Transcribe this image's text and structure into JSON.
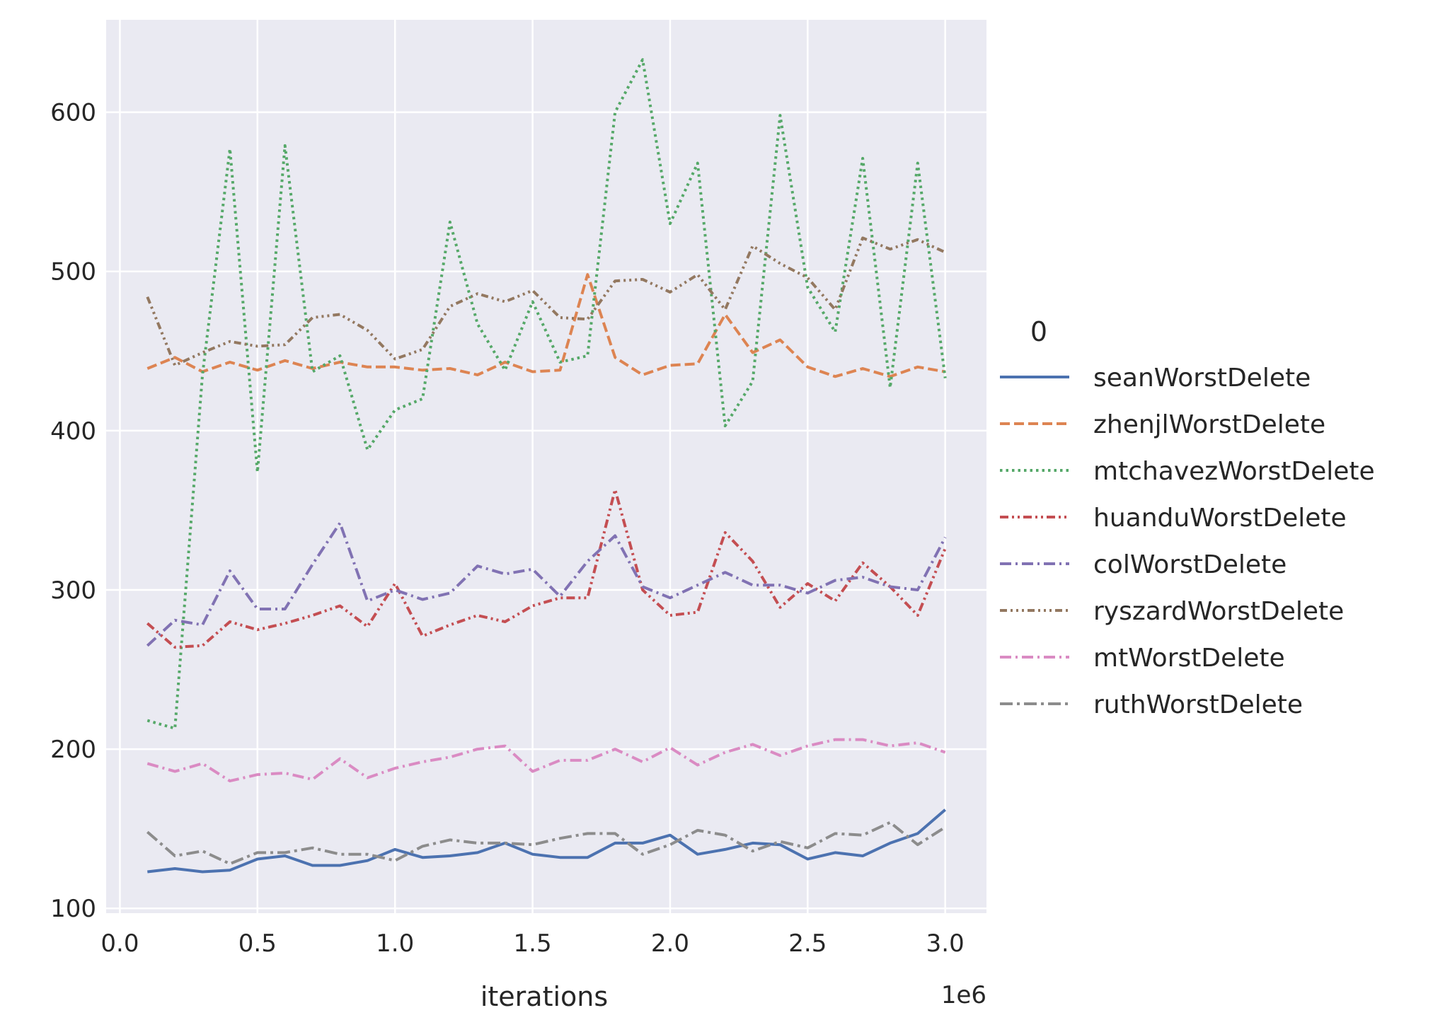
{
  "chart_data": {
    "type": "line",
    "xlabel": "iterations",
    "x_offset_text": "1e6",
    "xlim": [
      -0.05,
      3.15
    ],
    "ylim": [
      97,
      658
    ],
    "x_ticks": [
      0.0,
      0.5,
      1.0,
      1.5,
      2.0,
      2.5,
      3.0
    ],
    "x_tick_labels": [
      "0.0",
      "0.5",
      "1.0",
      "1.5",
      "2.0",
      "2.5",
      "3.0"
    ],
    "y_ticks": [
      100,
      200,
      300,
      400,
      500,
      600
    ],
    "y_tick_labels": [
      "100",
      "200",
      "300",
      "400",
      "500",
      "600"
    ],
    "grid": true,
    "legend_title": "0",
    "legend_placement": "right",
    "x": [
      0.1,
      0.2,
      0.3,
      0.4,
      0.5,
      0.6,
      0.7,
      0.8,
      0.9,
      1.0,
      1.1,
      1.2,
      1.3,
      1.4,
      1.5,
      1.6,
      1.7,
      1.8,
      1.9,
      2.0,
      2.1,
      2.2,
      2.3,
      2.4,
      2.5,
      2.6,
      2.7,
      2.8,
      2.9,
      3.0
    ],
    "series": [
      {
        "name": "seanWorstDelete",
        "color": "#4c72b0",
        "dash": "solid",
        "values": [
          123,
          125,
          123,
          124,
          131,
          133,
          127,
          127,
          130,
          137,
          132,
          133,
          135,
          141,
          134,
          132,
          132,
          141,
          141,
          146,
          134,
          137,
          141,
          140,
          131,
          135,
          133,
          141,
          147,
          162
        ]
      },
      {
        "name": "zhenjlWorstDelete",
        "color": "#dd8452",
        "dash": "dashed",
        "values": [
          439,
          446,
          437,
          443,
          438,
          444,
          439,
          443,
          440,
          440,
          438,
          439,
          435,
          443,
          437,
          438,
          498,
          446,
          435,
          441,
          442,
          473,
          449,
          457,
          440,
          434,
          439,
          434,
          440,
          437
        ]
      },
      {
        "name": "mtchavezWorstDelete",
        "color": "#55a868",
        "dash": "dotted",
        "values": [
          218,
          213,
          435,
          577,
          374,
          579,
          437,
          447,
          388,
          413,
          420,
          531,
          467,
          438,
          481,
          443,
          447,
          600,
          633,
          530,
          568,
          403,
          431,
          598,
          490,
          462,
          571,
          427,
          568,
          433
        ]
      },
      {
        "name": "huanduWorstDelete",
        "color": "#c44e52",
        "dash": "dashdotdot",
        "values": [
          279,
          264,
          265,
          280,
          275,
          279,
          284,
          290,
          277,
          304,
          271,
          278,
          284,
          280,
          290,
          295,
          295,
          363,
          300,
          284,
          286,
          336,
          318,
          289,
          304,
          293,
          317,
          302,
          284,
          326
        ]
      },
      {
        "name": "colWorstDelete",
        "color": "#8172b3",
        "dash": "dashdot",
        "values": [
          265,
          281,
          278,
          312,
          288,
          288,
          316,
          342,
          293,
          300,
          294,
          298,
          315,
          310,
          313,
          296,
          318,
          334,
          302,
          295,
          303,
          311,
          303,
          303,
          298,
          306,
          308,
          302,
          300,
          333
        ]
      },
      {
        "name": "ryszardWorstDelete",
        "color": "#937860",
        "dash": "dashdotdotdot",
        "values": [
          484,
          441,
          449,
          456,
          453,
          454,
          471,
          473,
          463,
          445,
          451,
          478,
          486,
          481,
          488,
          471,
          470,
          494,
          495,
          487,
          498,
          476,
          516,
          505,
          496,
          476,
          521,
          514,
          520,
          512
        ]
      },
      {
        "name": "mtWorstDelete",
        "color": "#da8bc3",
        "dash": "dashdot2",
        "values": [
          191,
          186,
          191,
          180,
          184,
          185,
          181,
          194,
          182,
          188,
          192,
          195,
          200,
          202,
          186,
          193,
          193,
          200,
          192,
          201,
          190,
          198,
          203,
          196,
          202,
          206,
          206,
          202,
          204,
          198
        ]
      },
      {
        "name": "ruthWorstDelete",
        "color": "#8c8c8c",
        "dash": "longdashdot",
        "values": [
          148,
          133,
          136,
          128,
          135,
          135,
          138,
          134,
          134,
          130,
          139,
          143,
          141,
          141,
          140,
          144,
          147,
          147,
          134,
          140,
          149,
          146,
          136,
          142,
          138,
          147,
          146,
          154,
          140,
          151
        ]
      }
    ]
  }
}
